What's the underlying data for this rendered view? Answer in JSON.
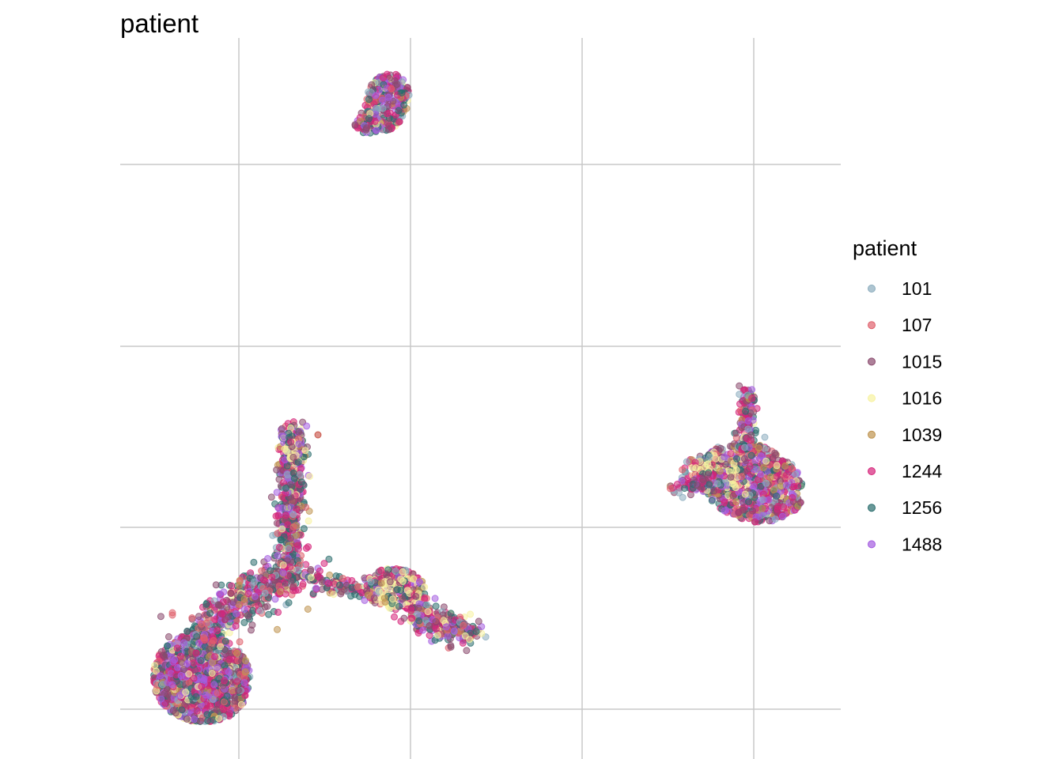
{
  "chart_data": {
    "type": "scatter",
    "title": "patient",
    "xlabel": "",
    "ylabel": "",
    "x_ticks_shown": false,
    "y_ticks_shown": false,
    "xlim": [
      -1,
      3.2
    ],
    "ylim": [
      -0.4,
      2.9
    ],
    "grid": true,
    "legend": {
      "title": "patient",
      "placement": "right"
    },
    "series": [
      {
        "name": "101",
        "color": "#8bacbd"
      },
      {
        "name": "107",
        "color": "#e0626d"
      },
      {
        "name": "1015",
        "color": "#8a4a6d"
      },
      {
        "name": "1016",
        "color": "#f7f2a0"
      },
      {
        "name": "1039",
        "color": "#bf9450"
      },
      {
        "name": "1244",
        "color": "#d6247a"
      },
      {
        "name": "1256",
        "color": "#2b6e6e"
      },
      {
        "name": "1488",
        "color": "#a45de0"
      }
    ],
    "clusters": [
      {
        "region": "top-center",
        "points": [
          [
            0.82,
            2.45
          ],
          [
            0.76,
            2.38
          ],
          [
            0.88,
            2.5
          ],
          [
            0.8,
            2.6
          ],
          [
            0.9,
            2.3
          ],
          [
            0.72,
            2.33
          ]
        ]
      },
      {
        "region": "right",
        "points": [
          [
            3.0,
            1.25
          ],
          [
            2.95,
            1.35
          ],
          [
            3.05,
            1.2
          ],
          [
            2.85,
            1.3
          ],
          [
            2.95,
            1.55
          ],
          [
            3.1,
            1.22
          ],
          [
            2.72,
            1.2
          ]
        ]
      },
      {
        "region": "bottom-left-arm",
        "points": [
          [
            0.32,
            1.35
          ],
          [
            0.3,
            1.22
          ],
          [
            0.33,
            1.1
          ],
          [
            0.3,
            0.95
          ],
          [
            0.25,
            0.8
          ],
          [
            0.4,
            0.7
          ],
          [
            0.5,
            0.68
          ]
        ]
      },
      {
        "region": "bottom-left-blob",
        "points": [
          [
            -0.1,
            -0.25
          ],
          [
            -0.2,
            -0.18
          ],
          [
            0.05,
            -0.25
          ],
          [
            -0.05,
            -0.1
          ],
          [
            0.1,
            0.2
          ],
          [
            0.2,
            0.35
          ],
          [
            -0.15,
            0.0
          ]
        ]
      },
      {
        "region": "bottom-center",
        "points": [
          [
            0.75,
            0.55
          ],
          [
            0.85,
            0.6
          ],
          [
            0.9,
            0.45
          ],
          [
            1.1,
            0.35
          ],
          [
            1.25,
            0.32
          ],
          [
            1.05,
            0.3
          ],
          [
            0.7,
            0.48
          ]
        ]
      }
    ]
  }
}
